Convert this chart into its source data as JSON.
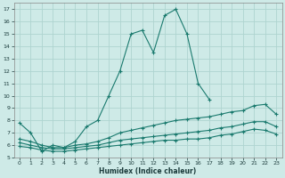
{
  "xlabel": "Humidex (Indice chaleur)",
  "bg_color": "#ceeae7",
  "grid_color": "#aed4d0",
  "line_color": "#1a7a6e",
  "xlim": [
    -0.5,
    23.5
  ],
  "ylim": [
    5,
    17.5
  ],
  "xticks": [
    0,
    1,
    2,
    3,
    4,
    5,
    6,
    7,
    8,
    9,
    10,
    11,
    12,
    13,
    14,
    15,
    16,
    17,
    18,
    19,
    20,
    21,
    22,
    23
  ],
  "yticks": [
    5,
    6,
    7,
    8,
    9,
    10,
    11,
    12,
    13,
    14,
    15,
    16,
    17
  ],
  "curve1_x": [
    0,
    1,
    2,
    3,
    4,
    5,
    6,
    7,
    8,
    9,
    10,
    11,
    12,
    13,
    14,
    15,
    16,
    17
  ],
  "curve1_y": [
    7.8,
    7.0,
    5.5,
    6.0,
    5.8,
    6.3,
    7.5,
    8.0,
    10.0,
    12.0,
    15.0,
    15.3,
    13.5,
    16.5,
    17.0,
    15.0,
    11.0,
    9.7
  ],
  "curve2_x": [
    0,
    1,
    2,
    3,
    4,
    5,
    6,
    7,
    8,
    9,
    10,
    11,
    12,
    13,
    14,
    15,
    16,
    17,
    18,
    19,
    20,
    21,
    22,
    23
  ],
  "curve2_y": [
    6.5,
    6.3,
    6.0,
    5.8,
    5.8,
    6.0,
    6.1,
    6.3,
    6.6,
    7.0,
    7.2,
    7.4,
    7.6,
    7.8,
    8.0,
    8.1,
    8.2,
    8.3,
    8.5,
    8.7,
    8.8,
    9.2,
    9.3,
    8.5
  ],
  "curve3_x": [
    0,
    1,
    2,
    3,
    4,
    5,
    6,
    7,
    8,
    9,
    10,
    11,
    12,
    13,
    14,
    15,
    16,
    17,
    18,
    19,
    20,
    21,
    22,
    23
  ],
  "curve3_y": [
    6.2,
    6.0,
    5.8,
    5.7,
    5.7,
    5.8,
    5.9,
    6.0,
    6.2,
    6.4,
    6.5,
    6.6,
    6.7,
    6.8,
    6.9,
    7.0,
    7.1,
    7.2,
    7.4,
    7.5,
    7.7,
    7.9,
    7.9,
    7.5
  ],
  "curve4_x": [
    0,
    1,
    2,
    3,
    4,
    5,
    6,
    7,
    8,
    9,
    10,
    11,
    12,
    13,
    14,
    15,
    16,
    17,
    18,
    19,
    20,
    21,
    22,
    23
  ],
  "curve4_y": [
    5.9,
    5.8,
    5.6,
    5.5,
    5.5,
    5.6,
    5.7,
    5.8,
    5.9,
    6.0,
    6.1,
    6.2,
    6.3,
    6.4,
    6.4,
    6.5,
    6.5,
    6.6,
    6.8,
    6.9,
    7.1,
    7.3,
    7.2,
    6.9
  ]
}
